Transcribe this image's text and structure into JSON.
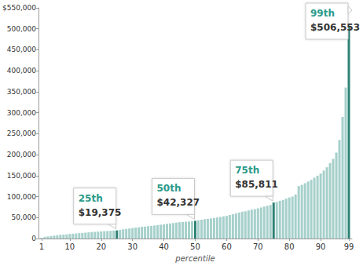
{
  "chart_data": {
    "type": "bar",
    "x_label": "percentile",
    "color": "#a6d0cb",
    "grid": false,
    "x": [
      1,
      2,
      3,
      4,
      5,
      6,
      7,
      8,
      9,
      10,
      11,
      12,
      13,
      14,
      15,
      16,
      17,
      18,
      19,
      20,
      21,
      22,
      23,
      24,
      25,
      26,
      27,
      28,
      29,
      30,
      31,
      32,
      33,
      34,
      35,
      36,
      37,
      38,
      39,
      40,
      41,
      42,
      43,
      44,
      45,
      46,
      47,
      48,
      49,
      50,
      51,
      52,
      53,
      54,
      55,
      56,
      57,
      58,
      59,
      60,
      61,
      62,
      63,
      64,
      65,
      66,
      67,
      68,
      69,
      70,
      71,
      72,
      73,
      74,
      75,
      76,
      77,
      78,
      79,
      80,
      81,
      82,
      83,
      84,
      85,
      86,
      87,
      88,
      89,
      90,
      91,
      92,
      93,
      94,
      95,
      96,
      97,
      98,
      99
    ],
    "values": [
      2000,
      4000,
      5000,
      6000,
      7000,
      8000,
      9000,
      9500,
      10000,
      11000,
      11500,
      12000,
      12800,
      13500,
      14000,
      14800,
      15500,
      16000,
      16500,
      17000,
      17500,
      18000,
      18500,
      19000,
      19375,
      20500,
      22000,
      23000,
      24000,
      25000,
      26000,
      27000,
      28000,
      28500,
      29500,
      30000,
      31000,
      32000,
      33000,
      34000,
      35000,
      36000,
      37000,
      38000,
      39000,
      39500,
      40000,
      40500,
      41500,
      42327,
      43500,
      45000,
      46000,
      47000,
      48000,
      49000,
      50000,
      51500,
      53000,
      54000,
      56000,
      58000,
      60000,
      62000,
      64000,
      65000,
      67000,
      69000,
      70000,
      72000,
      74000,
      76000,
      78000,
      80000,
      85811,
      87000,
      90000,
      92000,
      95000,
      98000,
      100000,
      105000,
      125000,
      128000,
      132000,
      136000,
      140000,
      145000,
      150000,
      155000,
      162000,
      170000,
      180000,
      190000,
      205000,
      235000,
      290000,
      360000,
      506553
    ],
    "xlim": [
      0,
      100
    ],
    "xticks": [
      1,
      10,
      20,
      30,
      40,
      50,
      60,
      70,
      80,
      90,
      99
    ],
    "ylim": [
      0,
      550000
    ],
    "yticks": [
      0,
      {
        "value": 50000,
        "label": "50,000"
      },
      {
        "value": 100000,
        "label": "100,000"
      },
      {
        "value": 150000,
        "label": "150,000"
      },
      {
        "value": 200000,
        "label": "200,000"
      },
      {
        "value": 250000,
        "label": "250,000"
      },
      {
        "value": 300000,
        "label": "300,000"
      },
      {
        "value": 350000,
        "label": "350,000"
      },
      {
        "value": 400000,
        "label": "400,000"
      },
      {
        "value": 450000,
        "label": "450,000"
      },
      {
        "value": 500000,
        "label": "500,000"
      },
      {
        "value": 550000,
        "label": "$550,000"
      }
    ],
    "annotations": [
      {
        "x": 25,
        "value": 19375,
        "title": "25th",
        "label": "$19,375",
        "color": "#2e8275"
      },
      {
        "x": 50,
        "value": 42327,
        "title": "50th",
        "label": "$42,327",
        "color": "#2e8275"
      },
      {
        "x": 75,
        "value": 85811,
        "title": "75th",
        "label": "$85,811",
        "color": "#2e8275"
      },
      {
        "x": 99,
        "value": 506553,
        "title": "99th",
        "label": "$506,553",
        "color": "#2e8275"
      }
    ]
  }
}
